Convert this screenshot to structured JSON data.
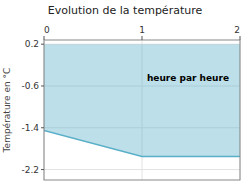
{
  "chart_data": {
    "type": "area",
    "title": "Evolution de la température",
    "y_label": "Température en °C",
    "x": [
      0,
      1.0,
      2.0
    ],
    "values": [
      -1.45,
      -1.95,
      -1.95
    ],
    "fill_to": 0.2,
    "color": "#5aafc8",
    "xlim": [
      0,
      2
    ],
    "xticks": [
      0,
      1,
      2
    ],
    "ylim": [
      -2.4,
      0.28
    ],
    "yticks": [
      0.2,
      -0.6,
      -1.4,
      -2.2
    ],
    "grid": true,
    "annotations": [
      {
        "text": "heure par heure",
        "x": 1.05,
        "y": -0.45
      }
    ]
  }
}
